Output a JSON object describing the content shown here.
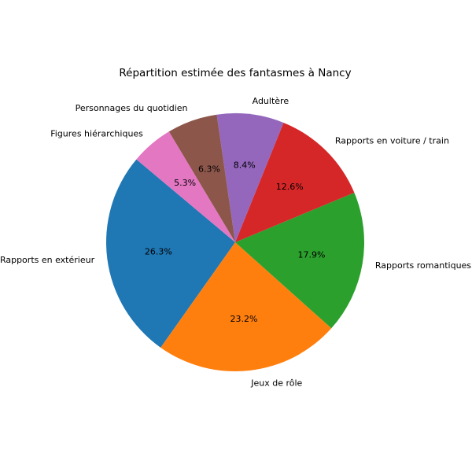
{
  "chart_data": {
    "type": "pie",
    "title": "Répartition estimée des fantasmes à Nancy",
    "categories": [
      "Rapports en extérieur",
      "Jeux de rôle",
      "Rapports romantiques",
      "Rapports en voiture / train",
      "Adultère",
      "Personnages du quotidien",
      "Figures hiérarchiques"
    ],
    "values": [
      26.3,
      23.2,
      17.9,
      12.6,
      8.4,
      6.3,
      5.3
    ],
    "value_labels": [
      "26.3%",
      "23.2%",
      "17.9%",
      "12.6%",
      "8.4%",
      "6.3%",
      "5.3%"
    ],
    "colors": [
      "#1f77b4",
      "#ff7f0e",
      "#2ca02c",
      "#d62728",
      "#9467bd",
      "#8c564b",
      "#e377c2"
    ]
  }
}
